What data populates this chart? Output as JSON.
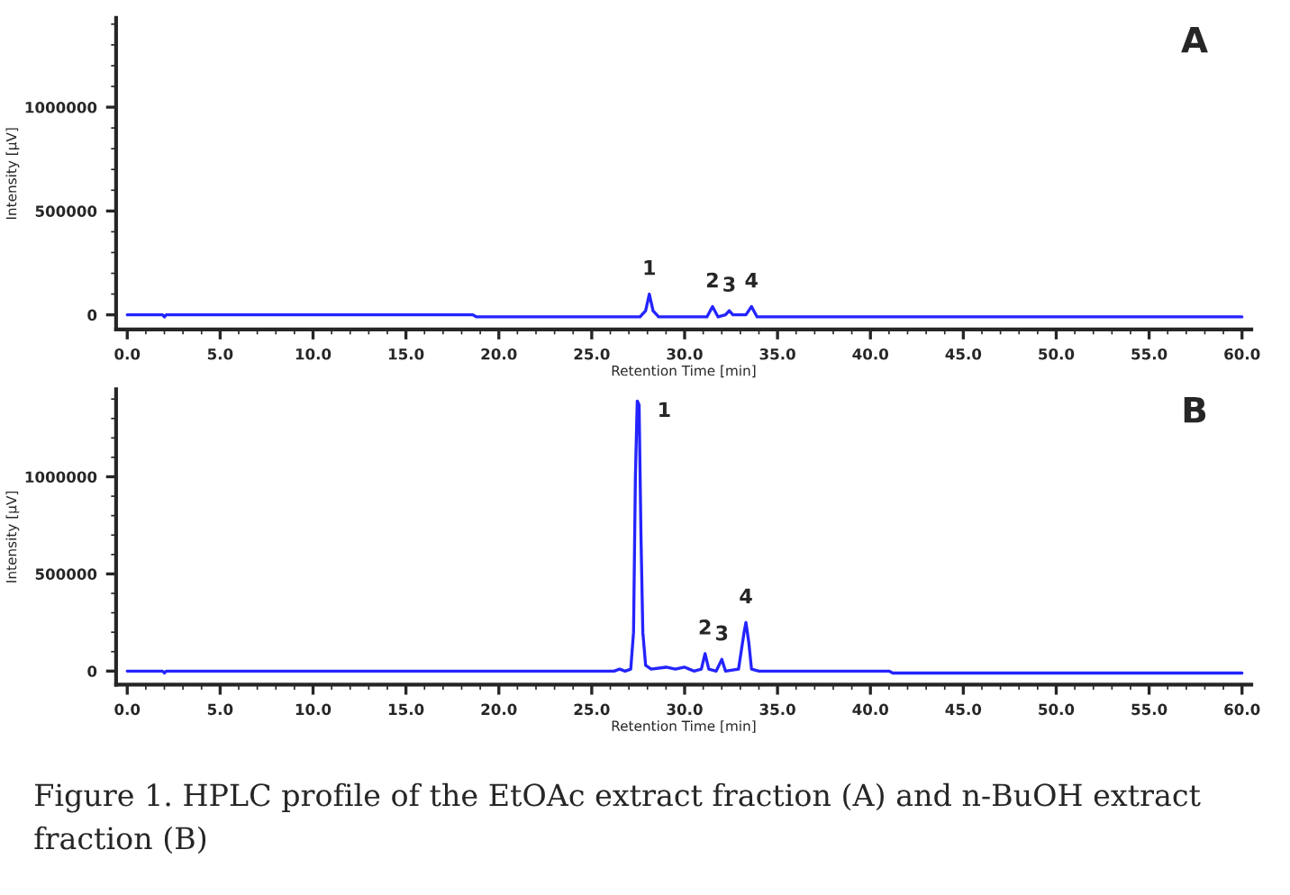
{
  "chart_data": [
    {
      "type": "line",
      "title": "A",
      "xlabel": "Retention Time [min]",
      "ylabel": "Intensity [µV]",
      "series": [
        {
          "color": "#2424ff",
          "x": [
            0,
            1.9,
            2.0,
            2.1,
            18.6,
            18.8,
            27.6,
            27.9,
            28.1,
            28.3,
            28.6,
            31.2,
            31.5,
            31.8,
            32.2,
            32.4,
            32.6,
            33.3,
            33.6,
            33.9,
            60
          ],
          "values": [
            0,
            0,
            -10000,
            0,
            0,
            -10000,
            -10000,
            20000,
            100000,
            20000,
            -10000,
            -10000,
            40000,
            -10000,
            0,
            20000,
            0,
            0,
            40000,
            -10000,
            -10000
          ]
        }
      ],
      "xlim": [
        -0.6,
        60.5
      ],
      "ylim": [
        -70000,
        1430000
      ],
      "xticks": [
        {
          "value": 0,
          "label": "0.0"
        },
        {
          "value": 5,
          "label": "5.0"
        },
        {
          "value": 10,
          "label": "10.0"
        },
        {
          "value": 15,
          "label": "15.0"
        },
        {
          "value": 20,
          "label": "20.0"
        },
        {
          "value": 25,
          "label": "25.0"
        },
        {
          "value": 30,
          "label": "30.0"
        },
        {
          "value": 35,
          "label": "35.0"
        },
        {
          "value": 40,
          "label": "40.0"
        },
        {
          "value": 45,
          "label": "45.0"
        },
        {
          "value": 50,
          "label": "50.0"
        },
        {
          "value": 55,
          "label": "55.0"
        },
        {
          "value": 60,
          "label": "60.0"
        }
      ],
      "yticks": [
        0,
        500000,
        1000000
      ],
      "annotations": [
        {
          "text": "1",
          "x": 28.1,
          "y": 100000
        },
        {
          "text": "2",
          "x": 31.5,
          "y": 40000
        },
        {
          "text": "3",
          "x": 32.4,
          "y": 20000
        },
        {
          "text": "4",
          "x": 33.6,
          "y": 40000
        }
      ],
      "grid": false,
      "legend": false
    },
    {
      "type": "line",
      "title": "B",
      "xlabel": "Retention Time [min]",
      "ylabel": "Intensity [µV]",
      "series": [
        {
          "color": "#2424ff",
          "x": [
            0,
            1.9,
            2.0,
            2.1,
            26.2,
            26.5,
            26.8,
            27.1,
            27.25,
            27.35,
            27.45,
            27.55,
            27.65,
            27.75,
            27.9,
            28.2,
            29.0,
            29.5,
            30.0,
            30.5,
            30.9,
            31.1,
            31.3,
            31.7,
            32.0,
            32.2,
            32.9,
            33.2,
            33.3,
            33.45,
            33.6,
            34.0,
            41.0,
            41.2,
            60
          ],
          "values": [
            0,
            0,
            -10000,
            0,
            0,
            10000,
            0,
            10000,
            200000,
            1000000,
            1390000,
            1370000,
            700000,
            200000,
            30000,
            10000,
            20000,
            10000,
            20000,
            0,
            10000,
            90000,
            10000,
            0,
            60000,
            0,
            10000,
            200000,
            250000,
            150000,
            10000,
            0,
            0,
            -10000,
            -10000
          ]
        }
      ],
      "xlim": [
        -0.6,
        60.5
      ],
      "ylim": [
        -70000,
        1450000
      ],
      "xticks": [
        {
          "value": 0,
          "label": "0.0"
        },
        {
          "value": 5,
          "label": "5.0"
        },
        {
          "value": 10,
          "label": "10.0"
        },
        {
          "value": 15,
          "label": "15.0"
        },
        {
          "value": 20,
          "label": "20.0"
        },
        {
          "value": 25,
          "label": "25.0"
        },
        {
          "value": 30,
          "label": "30.0"
        },
        {
          "value": 35,
          "label": "35.0"
        },
        {
          "value": 40,
          "label": "40.0"
        },
        {
          "value": 45,
          "label": "45.0"
        },
        {
          "value": 50,
          "label": "50.0"
        },
        {
          "value": 55,
          "label": "55.0"
        },
        {
          "value": 60,
          "label": "60.0"
        }
      ],
      "yticks": [
        0,
        500000,
        1000000
      ],
      "annotations": [
        {
          "text": "1",
          "x": 27.45,
          "y": 1390000
        },
        {
          "text": "2",
          "x": 31.1,
          "y": 90000
        },
        {
          "text": "3",
          "x": 32.0,
          "y": 60000
        },
        {
          "text": "4",
          "x": 33.3,
          "y": 250000
        },
        "Figure 1. HPLC profile of the EtOAc extract fraction (A) and n-BuOH extract fraction (B)"
      ],
      "grid": false,
      "legend": false
    }
  ]
}
